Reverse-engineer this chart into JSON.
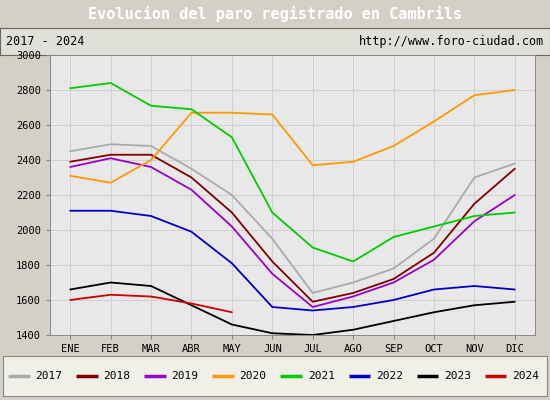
{
  "title": "Evolucion del paro registrado en Cambrils",
  "subtitle_left": "2017 - 2024",
  "subtitle_right": "http://www.foro-ciudad.com",
  "months": [
    "ENE",
    "FEB",
    "MAR",
    "ABR",
    "MAY",
    "JUN",
    "JUL",
    "AGO",
    "SEP",
    "OCT",
    "NOV",
    "DIC"
  ],
  "series": {
    "2017": {
      "color": "#aaaaaa",
      "data": [
        2450,
        2490,
        2480,
        2350,
        2200,
        1950,
        1640,
        1700,
        1780,
        1950,
        2300,
        2380
      ]
    },
    "2018": {
      "color": "#800000",
      "data": [
        2390,
        2430,
        2430,
        2300,
        2100,
        1820,
        1590,
        1640,
        1720,
        1870,
        2150,
        2350
      ]
    },
    "2019": {
      "color": "#9900cc",
      "data": [
        2360,
        2410,
        2360,
        2230,
        2020,
        1750,
        1560,
        1620,
        1700,
        1830,
        2050,
        2200
      ]
    },
    "2020": {
      "color": "#ff9900",
      "data": [
        2310,
        2270,
        2400,
        2670,
        2670,
        2660,
        2370,
        2390,
        2480,
        2620,
        2770,
        2800
      ]
    },
    "2021": {
      "color": "#00cc00",
      "data": [
        2810,
        2840,
        2710,
        2690,
        2530,
        2100,
        1900,
        1820,
        1960,
        2020,
        2080,
        2100
      ]
    },
    "2022": {
      "color": "#0000cc",
      "data": [
        2110,
        2110,
        2080,
        1990,
        1810,
        1560,
        1540,
        1560,
        1600,
        1660,
        1680,
        1660
      ]
    },
    "2023": {
      "color": "#000000",
      "data": [
        1660,
        1700,
        1680,
        1570,
        1460,
        1410,
        1400,
        1430,
        1480,
        1530,
        1570,
        1590
      ]
    },
    "2024": {
      "color": "#cc0000",
      "data": [
        1600,
        1630,
        1620,
        1580,
        1530,
        null,
        null,
        null,
        null,
        null,
        null,
        null
      ]
    }
  },
  "ylim": [
    1400,
    3000
  ],
  "yticks": [
    1400,
    1600,
    1800,
    2000,
    2200,
    2400,
    2600,
    2800,
    3000
  ],
  "bg_color": "#d4d0c8",
  "plot_bg_color": "#e8e8e8",
  "title_bg_color": "#4a86c8",
  "title_text_color": "#ffffff",
  "subtitle_bg_color": "#e0e0d8",
  "grid_color": "#cccccc",
  "border_color": "#000080"
}
